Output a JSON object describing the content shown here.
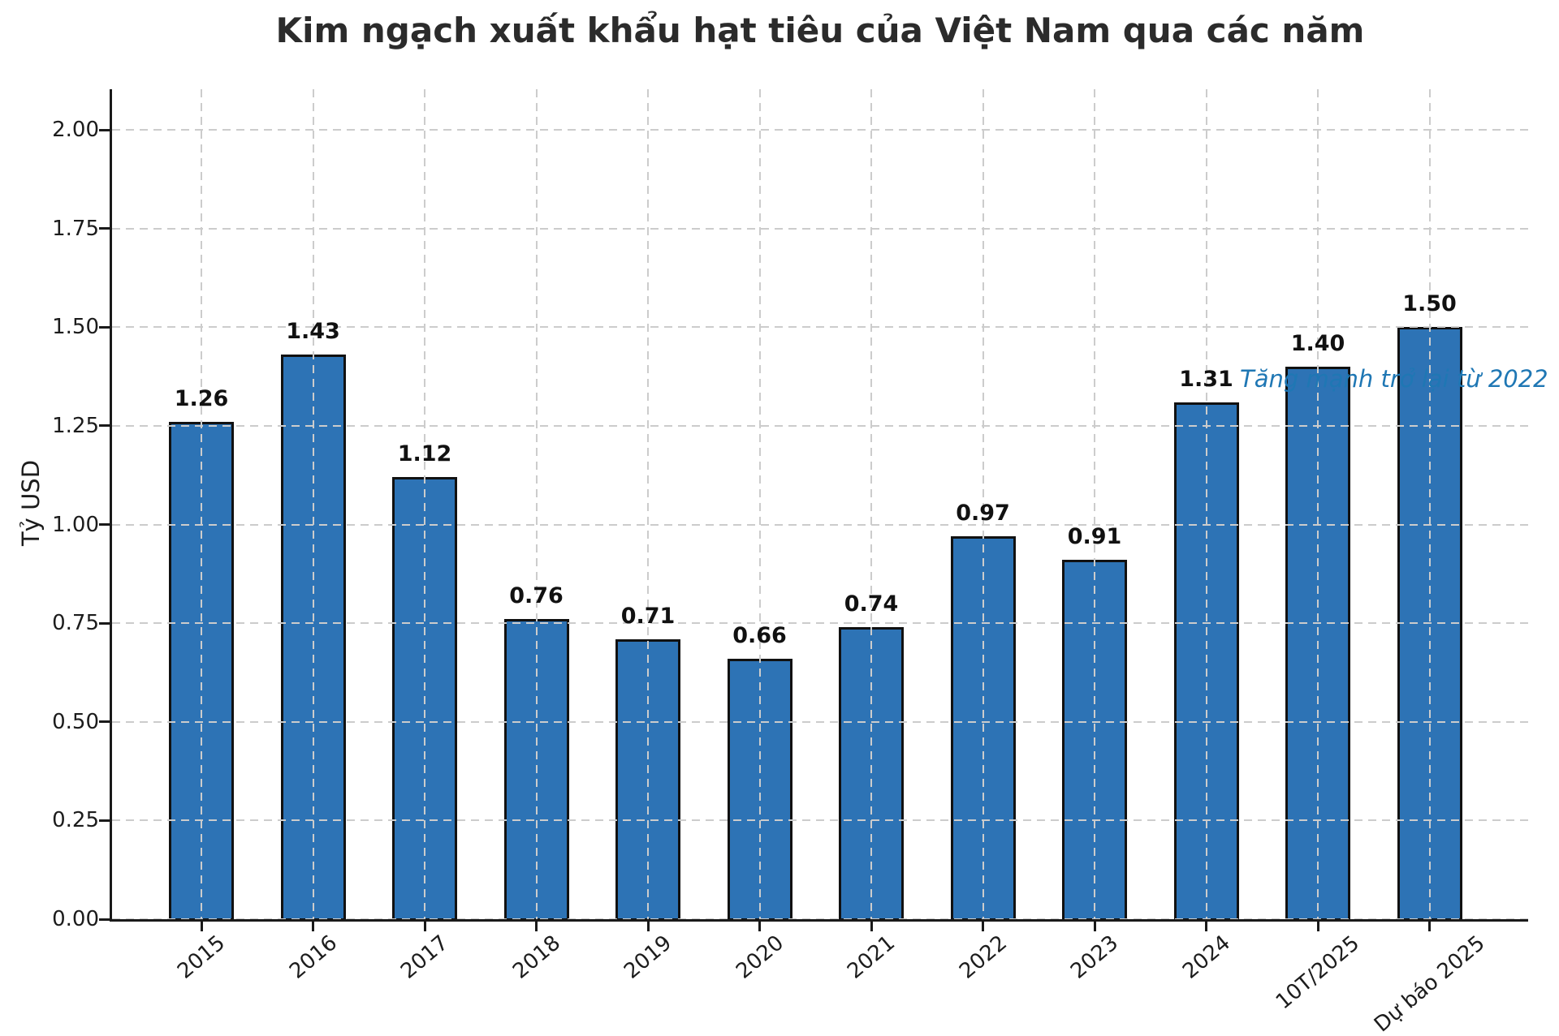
{
  "chart_data": {
    "type": "bar",
    "title": "Kim ngạch xuất khẩu hạt tiêu của Việt Nam qua các năm",
    "xlabel": "",
    "ylabel": "Tỷ USD",
    "categories": [
      "2015",
      "2016",
      "2017",
      "2018",
      "2019",
      "2020",
      "2021",
      "2022",
      "2023",
      "2024",
      "10T/2025",
      "Dự báo 2025"
    ],
    "values": [
      1.26,
      1.43,
      1.12,
      0.76,
      0.71,
      0.66,
      0.74,
      0.97,
      0.91,
      1.31,
      1.4,
      1.5
    ],
    "value_labels": [
      "1.26",
      "1.43",
      "1.12",
      "0.76",
      "0.71",
      "0.66",
      "0.74",
      "0.97",
      "0.91",
      "1.31",
      "1.40",
      "1.50"
    ],
    "yticks": [
      "0.00",
      "0.25",
      "0.50",
      "0.75",
      "1.00",
      "1.25",
      "1.50",
      "1.75",
      "2.00"
    ],
    "ylim": [
      0,
      2.1
    ],
    "grid": true,
    "grid_style": "dashed",
    "legend": "none",
    "annotation": {
      "text": "Tăng mạnh trở lại từ 2022",
      "color": "#1f77b4",
      "near_category": "10T/2025"
    },
    "bar_color": "#2d73b5",
    "bar_edge_color": "#111111",
    "grid_color": "#cccccc",
    "axis_color": "#1a1a1a",
    "text_color": "#1c1c1c",
    "title_color": "#2b2b2b"
  }
}
